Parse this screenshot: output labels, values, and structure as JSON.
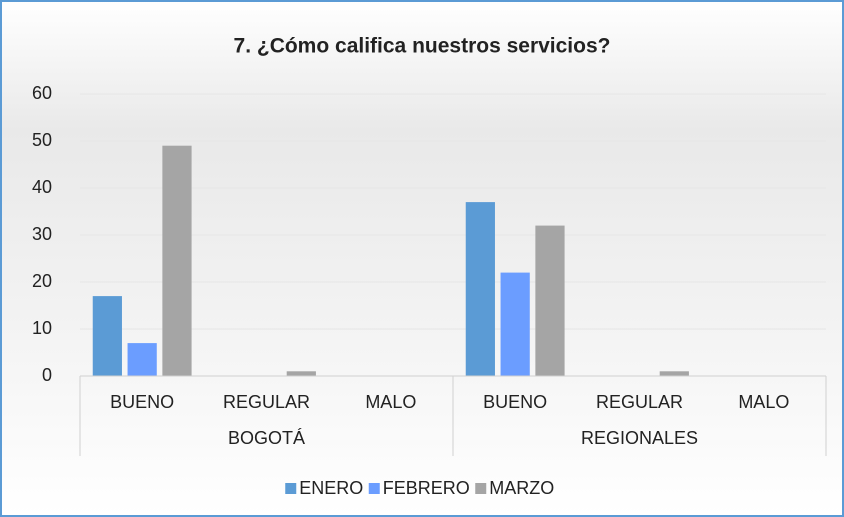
{
  "chart_data": {
    "type": "bar",
    "title": "7. ¿Cómo califica nuestros servicios?",
    "category_groups": [
      {
        "name": "BOGOTÁ",
        "categories": [
          "BUENO",
          "REGULAR",
          "MALO"
        ]
      },
      {
        "name": "REGIONALES",
        "categories": [
          "BUENO",
          "REGULAR",
          "MALO"
        ]
      }
    ],
    "series": [
      {
        "name": "ENERO",
        "color": "#5b9bd5",
        "values": [
          17,
          0,
          0,
          37,
          0,
          0
        ]
      },
      {
        "name": "FEBRERO",
        "color": "#6b9dff",
        "values": [
          7,
          0,
          0,
          22,
          0,
          0
        ]
      },
      {
        "name": "MARZO",
        "color": "#a5a5a5",
        "values": [
          49,
          1,
          0,
          32,
          1,
          0
        ]
      }
    ],
    "ylim": [
      0,
      60
    ],
    "yticks": [
      0,
      10,
      20,
      30,
      40,
      50,
      60
    ],
    "grid": true,
    "legend": "bottom"
  }
}
